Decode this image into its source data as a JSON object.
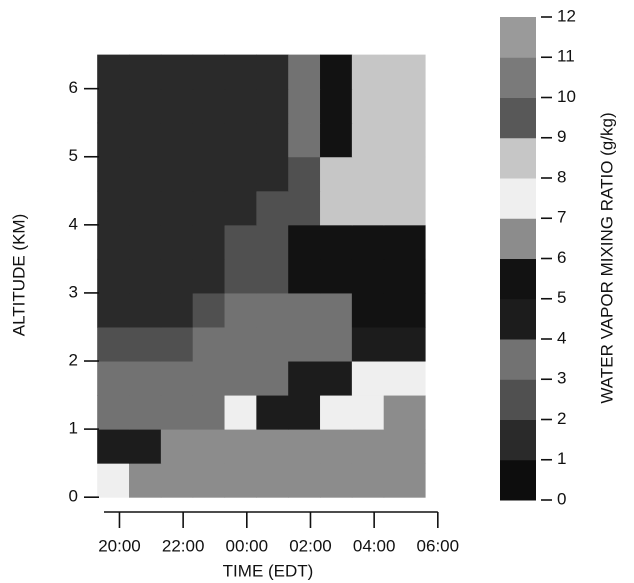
{
  "chart_data": {
    "type": "heatmap",
    "x_label": "TIME (EDT)",
    "y_label": "ALTITUDE (KM)",
    "colorbar_label": "WATER VAPOR MIXING RATIO (g/kg)",
    "xlim": [
      19.2,
      30.1
    ],
    "xticks": [
      {
        "value": 20,
        "label": "20:00"
      },
      {
        "value": 22,
        "label": "22:00"
      },
      {
        "value": 24,
        "label": "00:00"
      },
      {
        "value": 26,
        "label": "02:00"
      },
      {
        "value": 28,
        "label": "04:00"
      },
      {
        "value": 30,
        "label": "06:00"
      }
    ],
    "ylim": [
      -0.1,
      6.7
    ],
    "yticks": [
      0,
      1,
      2,
      3,
      4,
      5,
      6
    ],
    "x_edges": [
      19.3,
      20.3,
      21.3,
      22.3,
      23.3,
      24.3,
      25.3,
      26.3,
      27.3,
      28.3,
      29.6
    ],
    "y_edges": [
      0,
      0.5,
      1,
      1.5,
      2,
      2.5,
      3,
      3.5,
      4,
      4.5,
      5,
      5.5,
      6,
      6.5
    ],
    "values": [
      [
        7,
        6,
        6,
        6,
        6,
        6,
        6,
        6,
        6,
        6
      ],
      [
        4,
        4,
        6,
        6,
        6,
        6,
        6,
        6,
        6,
        6
      ],
      [
        3,
        3,
        3,
        3,
        7,
        4,
        4,
        7,
        7,
        6
      ],
      [
        3,
        3,
        3,
        3,
        3,
        3,
        4,
        4,
        7,
        7
      ],
      [
        2,
        2,
        2,
        3,
        3,
        3,
        3,
        3,
        4,
        4
      ],
      [
        1,
        1,
        1,
        2,
        3,
        3,
        3,
        3,
        5,
        5
      ],
      [
        1,
        1,
        1,
        1,
        2,
        2,
        5,
        5,
        5,
        5
      ],
      [
        1,
        1,
        1,
        1,
        2,
        2,
        5,
        5,
        5,
        5
      ],
      [
        1,
        1,
        1,
        1,
        1,
        2,
        2,
        8,
        8,
        8
      ],
      [
        1,
        1,
        1,
        1,
        1,
        1,
        2,
        8,
        8,
        8
      ],
      [
        1,
        1,
        1,
        1,
        1,
        1,
        3,
        5,
        8,
        8
      ],
      [
        1,
        1,
        1,
        1,
        1,
        1,
        3,
        5,
        8,
        8
      ],
      [
        1,
        1,
        1,
        1,
        1,
        1,
        3,
        5,
        8,
        8
      ]
    ],
    "colorbar_lim": [
      0,
      12
    ],
    "colorbar_ticks": [
      0,
      1,
      2,
      3,
      4,
      5,
      6,
      7,
      8,
      9,
      10,
      11,
      12
    ],
    "colors": [
      "#0d0d0d",
      "#2a2a2a",
      "#505050",
      "#727272",
      "#1c1c1c",
      "#121212",
      "#8c8c8c",
      "#efefef",
      "#c6c6c6",
      "#585858",
      "#7a7a7a",
      "#9a9a9a"
    ]
  }
}
